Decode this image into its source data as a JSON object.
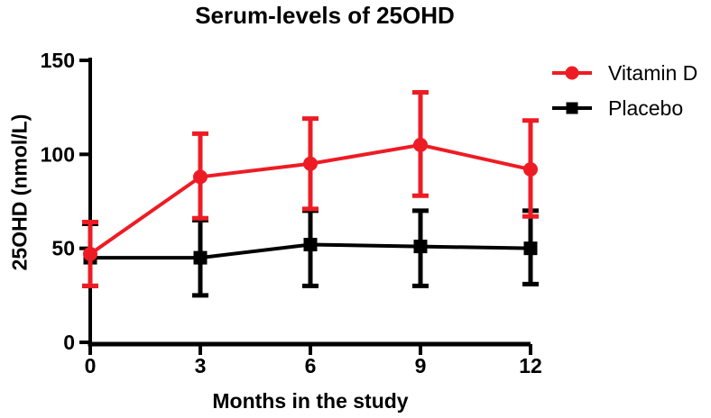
{
  "title": "Serum-levels of 25OHD",
  "colors": {
    "vitamin_d": "#ed1c24",
    "placebo": "#000000",
    "axis": "#000000",
    "background": "#ffffff"
  },
  "legend": {
    "position": "top-right",
    "items": [
      "Vitamin D",
      "Placebo"
    ]
  },
  "chart_data": {
    "type": "line",
    "title": "Serum-levels of 25OHD",
    "xlabel": "Months in the study",
    "ylabel": "25OHD (nmol/L)",
    "x": [
      0,
      3,
      6,
      9,
      12
    ],
    "x_ticks": [
      0,
      3,
      6,
      9,
      12
    ],
    "y_ticks": [
      0,
      50,
      100,
      150
    ],
    "xlim": [
      0,
      12
    ],
    "ylim": [
      0,
      150
    ],
    "grid": false,
    "error_bars": true,
    "legend_position": "top-right",
    "series": [
      {
        "name": "Vitamin D",
        "color": "#ed1c24",
        "marker": "circle",
        "values": [
          47,
          88,
          95,
          105,
          92
        ],
        "error_low": [
          30,
          66,
          71,
          78,
          67
        ],
        "error_high": [
          64,
          111,
          119,
          133,
          118
        ]
      },
      {
        "name": "Placebo",
        "color": "#000000",
        "marker": "square",
        "values": [
          45,
          45,
          52,
          51,
          50
        ],
        "error_low": [
          30,
          25,
          30,
          30,
          31
        ],
        "error_high": [
          63,
          65,
          70,
          70,
          70
        ]
      }
    ]
  }
}
